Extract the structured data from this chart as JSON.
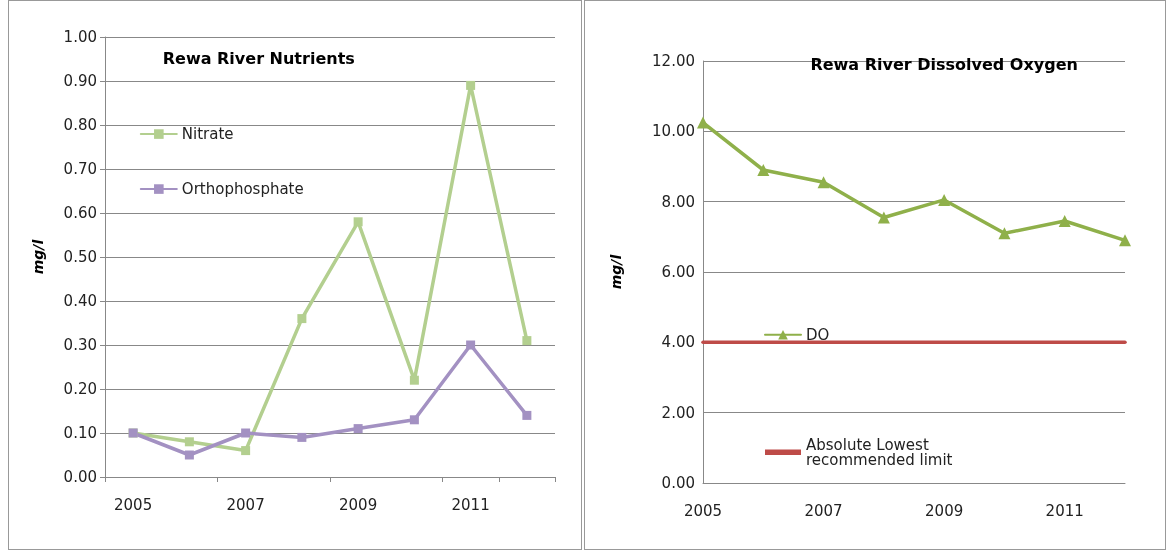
{
  "chart_data": [
    {
      "type": "line",
      "title": "Rewa River Nutrients",
      "ylabel": "mg/l",
      "categories": [
        "2005",
        null,
        "2007",
        null,
        "2009",
        null,
        "2011",
        null
      ],
      "series": [
        {
          "name": "Nitrate",
          "color": "#b3cf8f",
          "values": [
            0.1,
            0.08,
            0.06,
            0.36,
            0.58,
            0.22,
            0.89,
            0.31
          ]
        },
        {
          "name": "Orthophosphate",
          "color": "#a391c2",
          "values": [
            0.1,
            0.05,
            0.1,
            0.09,
            0.11,
            0.13,
            0.3,
            0.14
          ]
        }
      ],
      "ylim": [
        0,
        1
      ],
      "yticks": [
        {
          "value": 0,
          "label": "0.00"
        },
        {
          "value": 0.1,
          "label": "0.10"
        },
        {
          "value": 0.2,
          "label": "0.20"
        },
        {
          "value": 0.3,
          "label": "0.30"
        },
        {
          "value": 0.4,
          "label": "0.40"
        },
        {
          "value": 0.5,
          "label": "0.50"
        },
        {
          "value": 0.6,
          "label": "0.60"
        },
        {
          "value": 0.7,
          "label": "0.70"
        },
        {
          "value": 0.8,
          "label": "0.80"
        },
        {
          "value": 0.9,
          "label": "0.90"
        },
        {
          "value": 1,
          "label": "1.00"
        }
      ],
      "grid": "y",
      "legend": "top left",
      "marker": "square",
      "line_style": "solid"
    },
    {
      "type": "line",
      "title": "Rewa River Dissolved Oxygen",
      "ylabel": "mg/l",
      "categories": [
        "2005",
        null,
        "2007",
        null,
        "2009",
        null,
        "2011",
        null
      ],
      "series": [
        {
          "name": "DO",
          "color": "#8fb04a",
          "values": [
            10.25,
            8.9,
            8.55,
            7.55,
            8.05,
            7.1,
            7.45,
            6.9
          ],
          "marker": "triangle"
        },
        {
          "name": "Absolute Lowest\nrecommended limit",
          "color": "#be4b48",
          "values": [
            4,
            4,
            4,
            4,
            4,
            4,
            4,
            4
          ],
          "marker": "none"
        }
      ],
      "ylim": [
        0,
        12
      ],
      "yticks": [
        {
          "value": 0,
          "label": "0.00"
        },
        {
          "value": 2,
          "label": "2.00"
        },
        {
          "value": 4,
          "label": "4.00"
        },
        {
          "value": 6,
          "label": "6.00"
        },
        {
          "value": 8,
          "label": "8.00"
        },
        {
          "value": 10,
          "label": "10.00"
        },
        {
          "value": 12,
          "label": "12.00"
        }
      ],
      "grid": "y",
      "legend": "bottom left",
      "line_style": "solid"
    }
  ]
}
